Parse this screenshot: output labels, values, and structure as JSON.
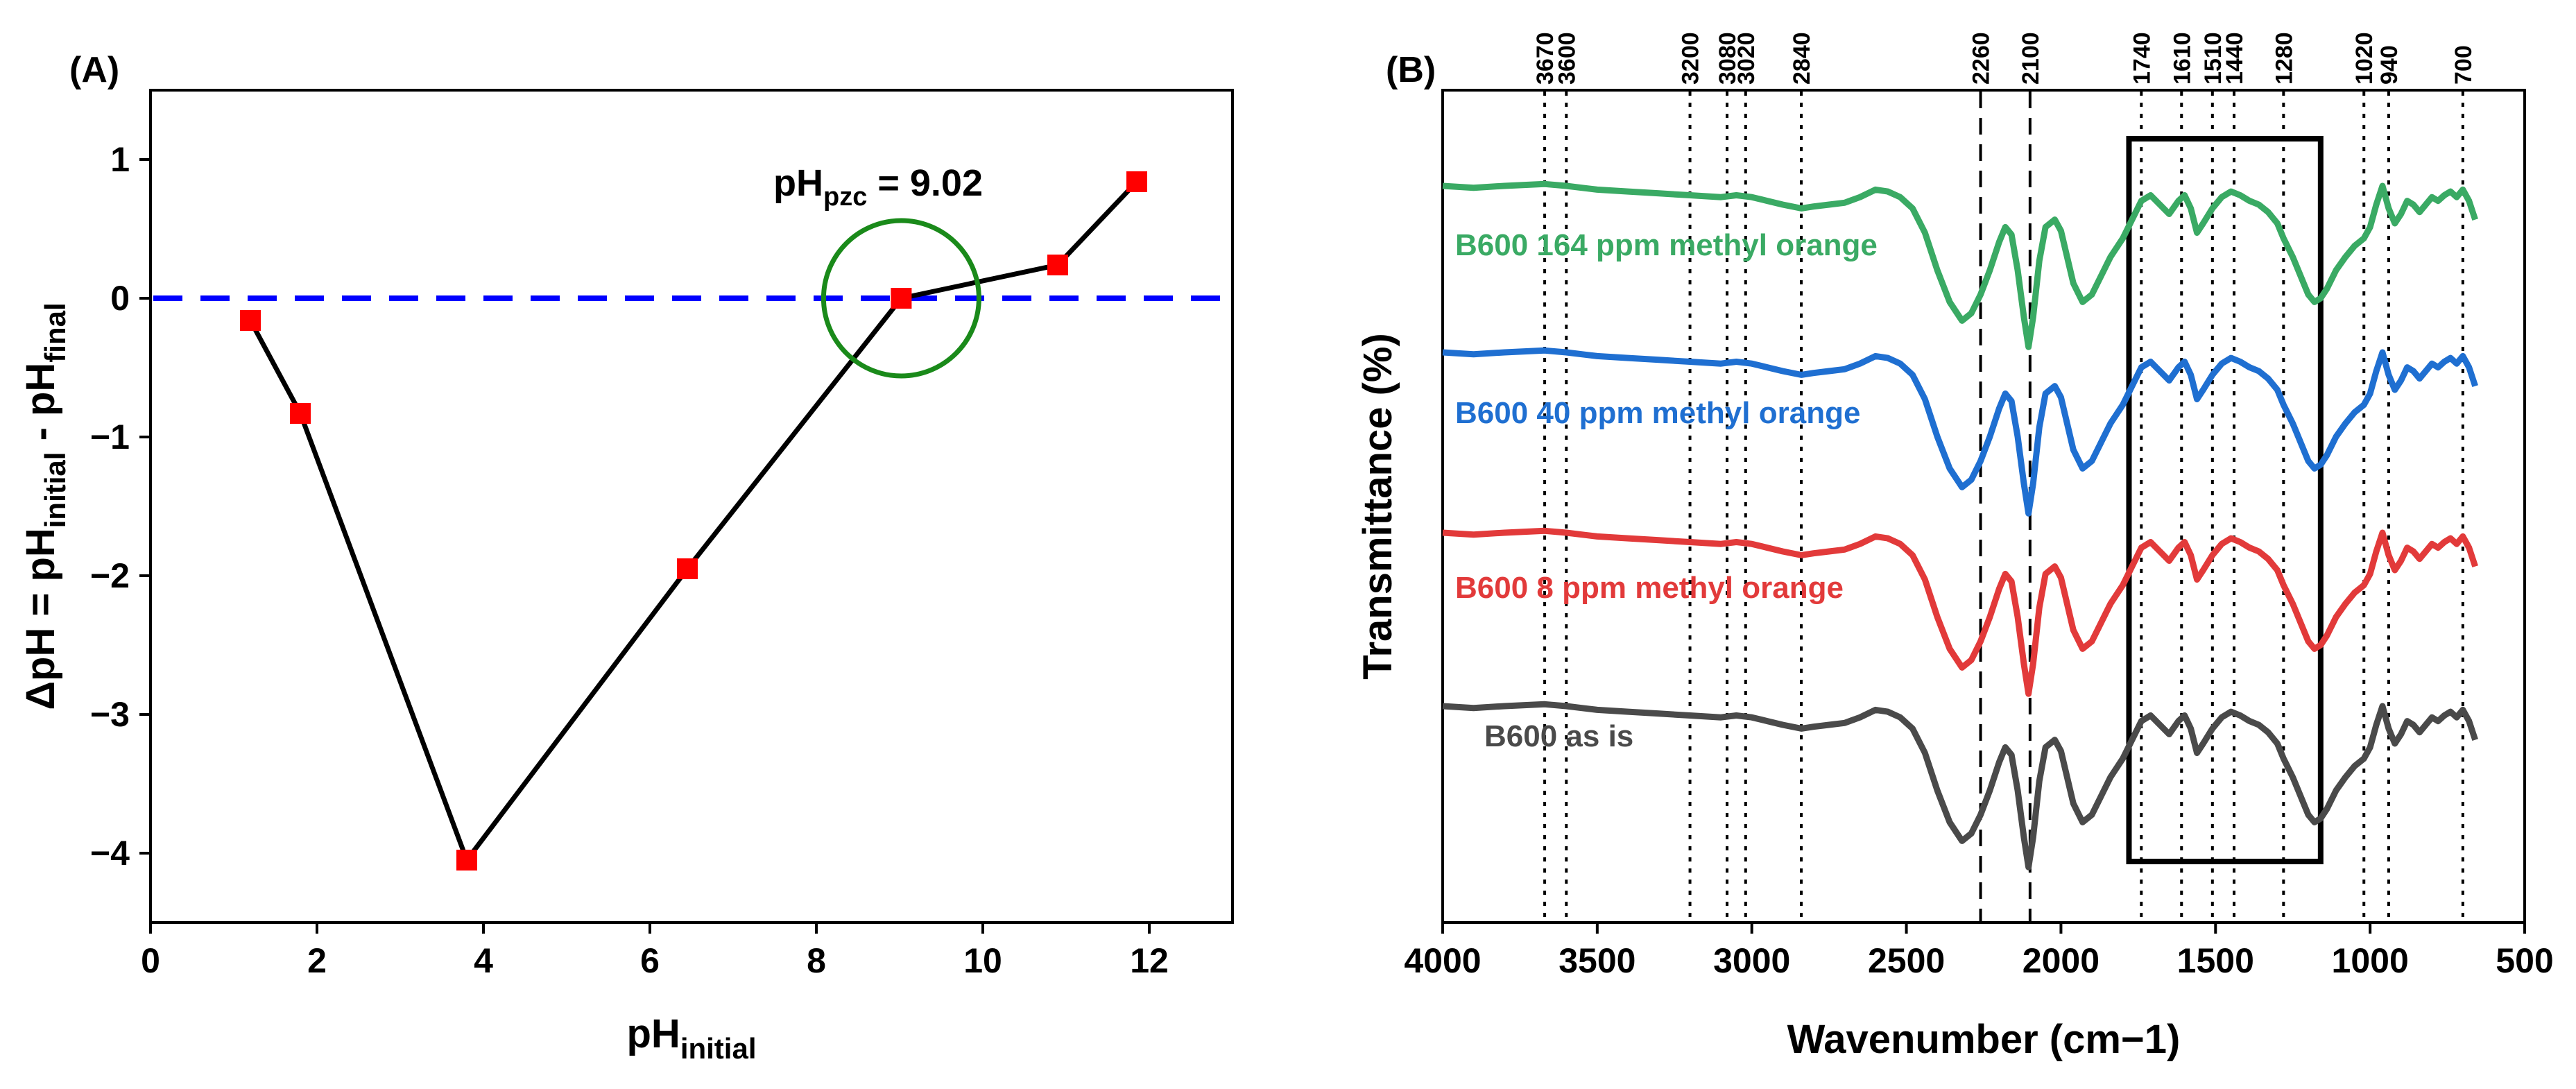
{
  "chart_data": [
    {
      "panel_label": "(A)",
      "type": "line",
      "xlabel": "pH",
      "xlabel_sub": "initial",
      "ylabel_parts": [
        "ΔpH = pH",
        "initial",
        " - pH",
        "final"
      ],
      "xlim": [
        0,
        13
      ],
      "ylim": [
        -4.5,
        1.5
      ],
      "xticks": [
        0,
        2,
        4,
        6,
        8,
        10,
        12
      ],
      "yticks": [
        -4,
        -3,
        -2,
        -1,
        0,
        1
      ],
      "ytick_labels": [
        "−4",
        "−3",
        "−2",
        "−1",
        "0",
        "1"
      ],
      "series": [
        {
          "name": "ΔpH",
          "color": "#000000",
          "marker_color": "#ff0000",
          "x": [
            1.2,
            1.8,
            3.8,
            6.45,
            9.02,
            10.9,
            11.85
          ],
          "y": [
            -0.16,
            -0.83,
            -4.05,
            -1.95,
            0.0,
            0.24,
            0.84
          ]
        }
      ],
      "reference_line": {
        "y": 0,
        "color": "#0000ff",
        "style": "dashed"
      },
      "annotation": {
        "main": "pH",
        "sub": "pzc",
        "value": " = 9.02",
        "circle_x": 9.02,
        "circle_y": 0,
        "circle_color": "#1a8a1a"
      }
    },
    {
      "panel_label": "(B)",
      "type": "line",
      "xlabel": "Wavenumber (cm−1)",
      "ylabel": "Transmittance (%)",
      "xlim": [
        4000,
        500
      ],
      "xticks": [
        4000,
        3500,
        3000,
        2500,
        2000,
        1500,
        1000,
        500
      ],
      "dotted_lines": [
        3670,
        3600,
        3200,
        3080,
        3020,
        2840,
        1740,
        1610,
        1510,
        1440,
        1280,
        1020,
        940,
        700
      ],
      "dashed_lines": [
        2260,
        2100
      ],
      "top_labels": [
        "3670",
        "3600",
        "3200",
        "3080",
        "3020",
        "2840",
        "2260",
        "2100",
        "1740",
        "1610",
        "1510",
        "1440",
        "1280",
        "1020",
        "940",
        "700"
      ],
      "box_range": [
        1780,
        1160
      ],
      "series": [
        {
          "name": "B600 164 ppm methyl orange",
          "color": "#3aaa64",
          "offset": 0
        },
        {
          "name": "B600 40 ppm methyl orange",
          "color": "#1f6fd1",
          "offset": 1
        },
        {
          "name": "B600 8 ppm methyl orange",
          "color": "#e23a3a",
          "offset": 2
        },
        {
          "name": "B600 as is",
          "color": "#4a4a4a",
          "offset": 3
        }
      ],
      "spectrum_shape": {
        "x": [
          4000,
          3900,
          3800,
          3670,
          3600,
          3500,
          3400,
          3300,
          3200,
          3100,
          3050,
          3000,
          2950,
          2900,
          2840,
          2800,
          2750,
          2700,
          2650,
          2600,
          2560,
          2520,
          2480,
          2440,
          2400,
          2360,
          2320,
          2290,
          2260,
          2230,
          2200,
          2180,
          2160,
          2140,
          2120,
          2105,
          2090,
          2070,
          2050,
          2020,
          2000,
          1980,
          1960,
          1930,
          1900,
          1870,
          1840,
          1800,
          1770,
          1740,
          1710,
          1680,
          1650,
          1620,
          1600,
          1580,
          1560,
          1540,
          1510,
          1480,
          1450,
          1420,
          1390,
          1360,
          1330,
          1300,
          1280,
          1250,
          1220,
          1200,
          1180,
          1160,
          1140,
          1110,
          1080,
          1050,
          1020,
          1000,
          980,
          960,
          940,
          920,
          900,
          880,
          860,
          840,
          820,
          800,
          780,
          760,
          740,
          720,
          700,
          680,
          660
        ],
        "y": [
          0.0,
          0.01,
          0.0,
          -0.01,
          0.0,
          0.02,
          0.03,
          0.04,
          0.05,
          0.06,
          0.05,
          0.06,
          0.08,
          0.1,
          0.12,
          0.11,
          0.1,
          0.09,
          0.06,
          0.02,
          0.03,
          0.06,
          0.12,
          0.25,
          0.45,
          0.62,
          0.72,
          0.68,
          0.58,
          0.45,
          0.3,
          0.22,
          0.26,
          0.45,
          0.7,
          0.86,
          0.7,
          0.4,
          0.22,
          0.18,
          0.24,
          0.38,
          0.52,
          0.62,
          0.58,
          0.48,
          0.38,
          0.28,
          0.18,
          0.08,
          0.05,
          0.1,
          0.15,
          0.08,
          0.05,
          0.12,
          0.25,
          0.2,
          0.12,
          0.06,
          0.03,
          0.05,
          0.08,
          0.1,
          0.14,
          0.2,
          0.28,
          0.38,
          0.5,
          0.58,
          0.62,
          0.6,
          0.55,
          0.45,
          0.38,
          0.32,
          0.28,
          0.22,
          0.1,
          0.0,
          0.12,
          0.2,
          0.15,
          0.08,
          0.1,
          0.14,
          0.1,
          0.06,
          0.08,
          0.05,
          0.03,
          0.06,
          0.02,
          0.08,
          0.18
        ]
      }
    }
  ]
}
